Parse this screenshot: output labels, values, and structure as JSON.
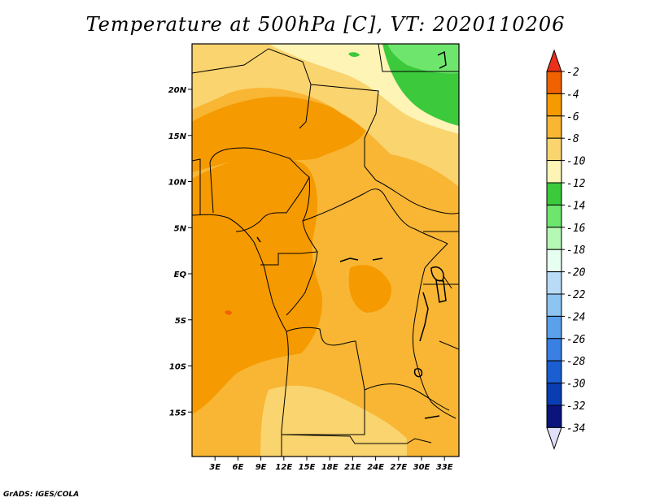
{
  "title": "Temperature at 500hPa [C], VT: 2020110206",
  "credit": "GrADS: IGES/COLA",
  "map": {
    "lat_labels": [
      "20N",
      "15N",
      "10N",
      "5N",
      "EQ",
      "5S",
      "10S",
      "15S"
    ],
    "lon_labels": [
      "3E",
      "6E",
      "9E",
      "12E",
      "15E",
      "18E",
      "21E",
      "24E",
      "27E",
      "30E",
      "33E"
    ],
    "lat_values": [
      20,
      15,
      10,
      5,
      0,
      -5,
      -10,
      -15
    ],
    "lon_values": [
      3,
      6,
      9,
      12,
      15,
      18,
      21,
      24,
      27,
      30,
      33
    ]
  },
  "colorbar": {
    "labels": [
      "-2",
      "-4",
      "-6",
      "-8",
      "-10",
      "-12",
      "-14",
      "-16",
      "-18",
      "-20",
      "-22",
      "-24",
      "-26",
      "-28",
      "-30",
      "-32",
      "-34"
    ],
    "colors": [
      "#e8301a",
      "#f06200",
      "#f59a00",
      "#f8b634",
      "#fad46e",
      "#fdf4b6",
      "#3cc93c",
      "#6ee66e",
      "#b4f8b4",
      "#e6fff0",
      "#b8dcf8",
      "#8cc4f2",
      "#5aa0ea",
      "#3a80e4",
      "#1a5ed2",
      "#0a3cb4",
      "#0a147a",
      "#e0e0fa"
    ]
  },
  "colors": {
    "minus4": "#f06200",
    "minus6": "#f59a00",
    "minus8": "#f8b634",
    "minus10": "#fad46e",
    "minus12": "#fdf4b6",
    "minus14": "#3cc93c",
    "minus16": "#6ee66e"
  }
}
